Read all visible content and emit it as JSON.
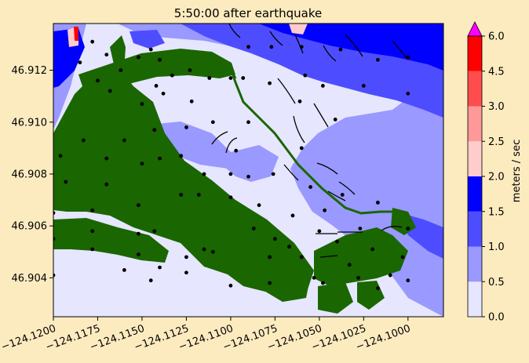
{
  "chart_data": {
    "type": "heatmap",
    "title": "5:50:00 after earthquake",
    "xlabel": "",
    "ylabel": "",
    "xlim": [
      -124.12,
      -124.098
    ],
    "ylim": [
      46.9025,
      46.9138
    ],
    "x_ticks": [
      "−124.1200",
      "−124.1175",
      "−124.1150",
      "−124.1125",
      "−124.1100",
      "−124.1075",
      "−124.1050",
      "−124.1025",
      "−124.1000"
    ],
    "x_tick_values": [
      -124.12,
      -124.1175,
      -124.115,
      -124.1125,
      -124.11,
      -124.1075,
      -124.105,
      -124.1025,
      -124.1
    ],
    "y_ticks": [
      "46.904",
      "46.906",
      "46.908",
      "46.910",
      "46.912"
    ],
    "y_tick_values": [
      46.904,
      46.906,
      46.908,
      46.91,
      46.912
    ],
    "colorbar": {
      "label": "meters / sec",
      "levels": [
        0.0,
        0.5,
        1.0,
        1.5,
        2.0,
        2.5,
        3.0,
        4.5,
        6.0
      ],
      "tick_labels": [
        "0.0",
        "0.5",
        "1.0",
        "1.5",
        "2.0",
        "2.5",
        "3.0",
        "4.5",
        "6.0"
      ],
      "colors": [
        "#e6e6ff",
        "#9999ff",
        "#4d4dff",
        "#0000ff",
        "#ffcccc",
        "#ff9999",
        "#ff4d4d",
        "#ff0000"
      ],
      "extend_color": "#ff00ff"
    },
    "land_color": "#1a6600",
    "marker_color": "#000000",
    "markers": [
      [
        -124.1178,
        46.9131
      ],
      [
        -124.117,
        46.9126
      ],
      [
        -124.1152,
        46.9125
      ],
      [
        -124.1145,
        46.9128
      ],
      [
        -124.114,
        46.9124
      ],
      [
        -124.1142,
        46.9114
      ],
      [
        -124.1133,
        46.9118
      ],
      [
        -124.1123,
        46.912
      ],
      [
        -124.1162,
        46.912
      ],
      [
        -124.1138,
        46.9111
      ],
      [
        -124.115,
        46.9107
      ],
      [
        -124.1168,
        46.9112
      ],
      [
        -124.1185,
        46.9123
      ],
      [
        -124.1175,
        46.9116
      ],
      [
        -124.1122,
        46.9108
      ],
      [
        -124.1112,
        46.9117
      ],
      [
        -124.109,
        46.9129
      ],
      [
        -124.1077,
        46.9129
      ],
      [
        -124.106,
        46.9129
      ],
      [
        -124.1038,
        46.9128
      ],
      [
        -124.1017,
        46.9124
      ],
      [
        -124.1,
        46.9125
      ],
      [
        -124.1078,
        46.9115
      ],
      [
        -124.1058,
        46.9118
      ],
      [
        -124.1048,
        46.9114
      ],
      [
        -124.1025,
        46.9114
      ],
      [
        -124.1,
        46.9111
      ],
      [
        -124.11,
        46.9117
      ],
      [
        -124.1093,
        46.9117
      ],
      [
        -124.1061,
        46.9108
      ],
      [
        -124.1041,
        46.9101
      ],
      [
        -124.109,
        46.91
      ],
      [
        -124.1125,
        46.9098
      ],
      [
        -124.111,
        46.91
      ],
      [
        -124.1143,
        46.9097
      ],
      [
        -124.116,
        46.9093
      ],
      [
        -124.1183,
        46.9093
      ],
      [
        -124.1196,
        46.9087
      ],
      [
        -124.117,
        46.9086
      ],
      [
        -124.115,
        46.9084
      ],
      [
        -124.1128,
        46.9087
      ],
      [
        -124.1097,
        46.9089
      ],
      [
        -124.11,
        46.908
      ],
      [
        -124.109,
        46.9079
      ],
      [
        -124.1076,
        46.908
      ],
      [
        -124.1055,
        46.9075
      ],
      [
        -124.106,
        46.909
      ],
      [
        -124.1115,
        46.908
      ],
      [
        -124.114,
        46.9086
      ],
      [
        -124.117,
        46.9076
      ],
      [
        -124.1193,
        46.9077
      ],
      [
        -124.12,
        46.9065
      ],
      [
        -124.1178,
        46.9066
      ],
      [
        -124.1152,
        46.9068
      ],
      [
        -124.1128,
        46.9072
      ],
      [
        -124.1118,
        46.9072
      ],
      [
        -124.11,
        46.9071
      ],
      [
        -124.1084,
        46.9068
      ],
      [
        -124.1065,
        46.9064
      ],
      [
        -124.1047,
        46.9066
      ],
      [
        -124.1037,
        46.9072
      ],
      [
        -124.1017,
        46.9069
      ],
      [
        -124.12,
        46.9055
      ],
      [
        -124.1178,
        46.9058
      ],
      [
        -124.1152,
        46.9057
      ],
      [
        -124.1143,
        46.9058
      ],
      [
        -124.1087,
        46.9059
      ],
      [
        -124.1075,
        46.9055
      ],
      [
        -124.1067,
        46.9052
      ],
      [
        -124.105,
        46.9058
      ],
      [
        -124.104,
        46.9054
      ],
      [
        -124.1027,
        46.9059
      ],
      [
        -124.102,
        46.9051
      ],
      [
        -124.1,
        46.9059
      ],
      [
        -124.12,
        46.9041
      ],
      [
        -124.1178,
        46.9051
      ],
      [
        -124.1152,
        46.9049
      ],
      [
        -124.114,
        46.9044
      ],
      [
        -124.1125,
        46.9048
      ],
      [
        -124.1115,
        46.9051
      ],
      [
        -124.111,
        46.905
      ],
      [
        -124.1078,
        46.9048
      ],
      [
        -124.106,
        46.9048
      ],
      [
        -124.1048,
        46.9038
      ],
      [
        -124.1028,
        46.904
      ],
      [
        -124.1017,
        46.9036
      ],
      [
        -124.1003,
        46.9048
      ],
      [
        -124.116,
        46.9043
      ],
      [
        -124.1145,
        46.9039
      ],
      [
        -124.1125,
        46.9042
      ],
      [
        -124.11,
        46.9037
      ],
      [
        -124.1078,
        46.9038
      ],
      [
        -124.1053,
        46.904
      ],
      [
        -124.1033,
        46.9045
      ],
      [
        -124.101,
        46.9041
      ],
      [
        -124.1,
        46.9039
      ]
    ]
  }
}
